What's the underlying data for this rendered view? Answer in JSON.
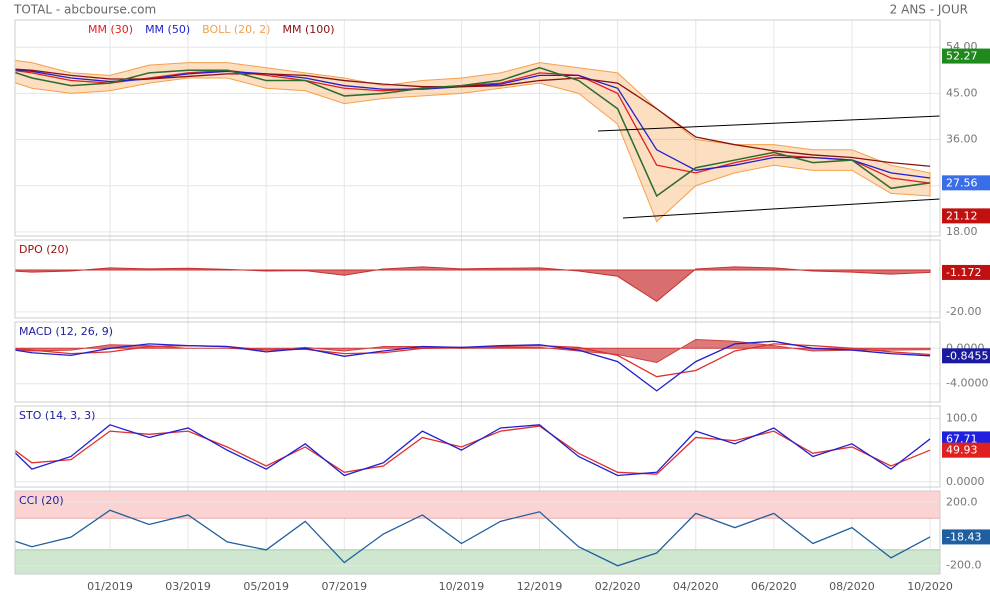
{
  "header": {
    "title": "TOTAL - abcbourse.com",
    "period": "2 ANS - JOUR"
  },
  "chart_data": [
    {
      "type": "line",
      "legend": true,
      "values": [
        50.5,
        48,
        46.5,
        47,
        49,
        49.5,
        49.5,
        47.5,
        47.5,
        44.5,
        45,
        46,
        46.5,
        47.5,
        50,
        47.5,
        42,
        25,
        30.5,
        32,
        33.5,
        31.5,
        32,
        26.5,
        27.56
      ],
      "color": "#2e6b2e",
      "series": [
        {
          "name": "MM (30)",
          "color": "#e02020",
          "values": [
            50,
            49,
            47.5,
            47,
            48,
            49,
            49.5,
            48.5,
            47.5,
            46,
            45.5,
            46,
            46.5,
            47,
            49,
            48.5,
            45,
            31,
            29.5,
            31.5,
            33,
            32.5,
            32,
            28.5,
            27.5
          ]
        },
        {
          "name": "MM (50)",
          "color": "#2020d0",
          "values": [
            50,
            49.3,
            48,
            47.3,
            47.8,
            48.8,
            49.3,
            48.8,
            48,
            46.5,
            45.8,
            45.8,
            46.3,
            46.8,
            48.5,
            48.5,
            46,
            34,
            30,
            31,
            32.5,
            32.5,
            32,
            29.5,
            28.5
          ]
        },
        {
          "name": "BOLL (20, 2)",
          "color": "#f5a04a",
          "upper": [
            52,
            51,
            49,
            48.5,
            50.5,
            51,
            51,
            50,
            49,
            48,
            46.5,
            47.5,
            48,
            49,
            51,
            50,
            49,
            42,
            36,
            35,
            35,
            34,
            34,
            31,
            29.5
          ],
          "lower": [
            48.5,
            46,
            45,
            45.5,
            47,
            48,
            48,
            46,
            45.5,
            43,
            44,
            44.5,
            45,
            46,
            47,
            45,
            39,
            20,
            27,
            29.5,
            31,
            30,
            30,
            25.5,
            25
          ]
        },
        {
          "name": "MM (100)",
          "color": "#8b1010",
          "values": [
            50,
            49.5,
            48.5,
            47.8,
            47.8,
            48.3,
            48.8,
            48.8,
            48.5,
            47.5,
            46.8,
            46.3,
            46.3,
            46.5,
            47.5,
            48,
            47,
            42,
            36.5,
            35,
            33.8,
            33,
            32.5,
            31.5,
            30.8
          ]
        }
      ],
      "ylim": [
        17.2,
        59.3
      ],
      "yticks": [
        {
          "value": 18,
          "label": "18.00"
        },
        {
          "value": 27,
          "label": "27.00"
        },
        {
          "value": 36,
          "label": "36.00"
        },
        {
          "value": 45,
          "label": "45.00"
        },
        {
          "value": 54,
          "label": "54.00"
        }
      ],
      "last_labels": [
        {
          "value": 52.27,
          "color": "#1e8a1e"
        },
        {
          "value": 27.56,
          "color": "#3a6ee8"
        },
        {
          "value": 21.12,
          "color": "#c01010"
        }
      ]
    },
    {
      "type": "area",
      "title": "DPO (20)",
      "title_color": "#a01010",
      "series": [
        {
          "color": "#c83030",
          "values": [
            0,
            -1,
            -0.5,
            1,
            0.5,
            0.8,
            0.3,
            -0.5,
            -0.3,
            -2.5,
            0.5,
            1.5,
            0.5,
            0.8,
            1,
            -0.5,
            -3,
            -15,
            0.5,
            1.5,
            1,
            -0.5,
            -1,
            -2,
            -1.172
          ]
        }
      ],
      "ylim": [
        -22.9,
        14.3
      ],
      "yticks": [
        {
          "value": -20,
          "label": "-20.00"
        }
      ],
      "last_labels": [
        {
          "value": -1.172,
          "color": "#c01010"
        }
      ]
    },
    {
      "type": "line",
      "title": "MACD (12, 26, 9)",
      "title_color": "#2020a0",
      "series": [
        {
          "color": "#d04040",
          "fill": true,
          "values": [
            0,
            -0.3,
            -0.2,
            0.4,
            0.3,
            0,
            0,
            -0.2,
            0.1,
            -0.3,
            0.2,
            0.2,
            0,
            0.1,
            0.1,
            -0.3,
            -0.7,
            -1.6,
            1,
            0.8,
            0.3,
            -0.3,
            -0.2,
            -0.2,
            -0.15
          ]
        },
        {
          "color": "#e03030",
          "values": [
            0.2,
            -0.2,
            -0.6,
            -0.4,
            0.2,
            0.3,
            0.2,
            -0.2,
            -0.1,
            -0.6,
            -0.5,
            0,
            0.1,
            0.2,
            0.3,
            0.1,
            -0.8,
            -3.2,
            -2.5,
            -0.3,
            0.5,
            0.3,
            0,
            -0.4,
            -0.7
          ]
        },
        {
          "color": "#2020d0",
          "values": [
            0.2,
            -0.5,
            -0.8,
            0,
            0.5,
            0.3,
            0.2,
            -0.4,
            0,
            -0.9,
            -0.3,
            0.2,
            0.1,
            0.3,
            0.4,
            -0.2,
            -1.5,
            -4.8,
            -1.5,
            0.5,
            0.8,
            0,
            -0.2,
            -0.6,
            -0.8455
          ]
        }
      ],
      "ylim": [
        -6.06,
        2.97
      ],
      "yticks": [
        {
          "value": 0,
          "label": "0.0000"
        },
        {
          "value": -4,
          "label": "-4.0000"
        }
      ],
      "last_labels": [
        {
          "value": -0.8455,
          "color": "#1a1aa0"
        }
      ]
    },
    {
      "type": "line",
      "title": "STO (14, 3, 3)",
      "title_color": "#2020a0",
      "series": [
        {
          "color": "#e03030",
          "values": [
            75,
            30,
            35,
            80,
            75,
            80,
            55,
            25,
            55,
            15,
            25,
            70,
            55,
            80,
            88,
            45,
            15,
            12,
            70,
            65,
            80,
            45,
            55,
            25,
            49.93
          ]
        },
        {
          "color": "#2020d0",
          "values": [
            80,
            20,
            40,
            90,
            70,
            85,
            50,
            20,
            60,
            10,
            30,
            80,
            50,
            85,
            90,
            40,
            10,
            15,
            80,
            60,
            85,
            40,
            60,
            20,
            67.71
          ]
        }
      ],
      "ylim": [
        -8.2,
        119.7
      ],
      "yticks": [
        {
          "value": 100,
          "label": "100.0"
        },
        {
          "value": 0,
          "label": "0.0000"
        }
      ],
      "last_labels": [
        {
          "value": 67.71,
          "color": "#2020e0"
        },
        {
          "value": 49.93,
          "color": "#e02020"
        }
      ]
    },
    {
      "type": "line",
      "title": "CCI (20)",
      "title_color": "#2020a0",
      "upper_band": 100,
      "lower_band": -100,
      "series": [
        {
          "color": "#1f5fa0",
          "values": [
            0,
            -80,
            -20,
            150,
            60,
            120,
            -50,
            -100,
            80,
            -180,
            0,
            120,
            -60,
            80,
            140,
            -80,
            -200,
            -120,
            130,
            40,
            130,
            -60,
            40,
            -150,
            -18.43
          ]
        }
      ],
      "ylim": [
        -252,
        271
      ],
      "yticks": [
        {
          "value": 200,
          "label": "200.0"
        },
        {
          "value": -200,
          "label": "-200.0"
        }
      ],
      "last_labels": [
        {
          "value": -18.43,
          "color": "#1f5fa0"
        }
      ],
      "categories": [
        null,
        null,
        null,
        "01/2019",
        null,
        "03/2019",
        null,
        "05/2019",
        null,
        "07/2019",
        null,
        null,
        "10/2019",
        null,
        "12/2019",
        null,
        "02/2020",
        null,
        "04/2020",
        null,
        "06/2020",
        null,
        "08/2020",
        null,
        "10/2020"
      ]
    }
  ]
}
